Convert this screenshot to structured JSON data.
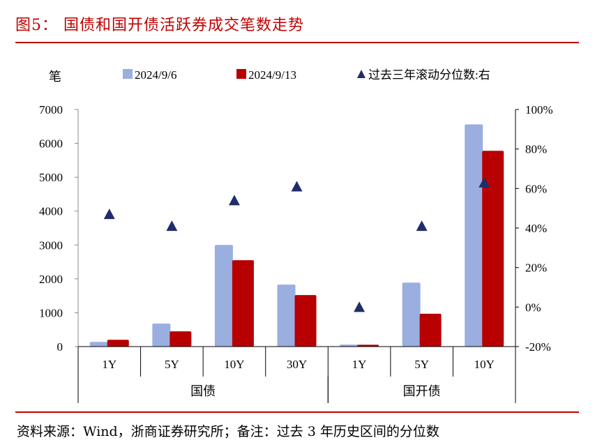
{
  "title": "图5：  国债和国开债活跃券成交笔数走势",
  "source": "资料来源：Wind，浙商证券研究所；备注：过去 3 年历史区间的分位数",
  "chart_data": {
    "type": "bar",
    "ylabel": "笔",
    "ylim": [
      0,
      7000
    ],
    "yticks": [
      0,
      1000,
      2000,
      3000,
      4000,
      5000,
      6000,
      7000
    ],
    "y2lim": [
      -20,
      100
    ],
    "y2ticks": [
      "-20%",
      "0%",
      "20%",
      "40%",
      "60%",
      "80%",
      "100%"
    ],
    "categories": [
      "1Y",
      "5Y",
      "10Y",
      "30Y",
      "1Y",
      "5Y",
      "10Y"
    ],
    "groups": [
      {
        "label": "国债",
        "count": 4
      },
      {
        "label": "国开债",
        "count": 3
      }
    ],
    "series": [
      {
        "name": "2024/9/6",
        "type": "bar",
        "color": "#9aaee0",
        "values": [
          140,
          680,
          3000,
          1830,
          60,
          1890,
          6560
        ]
      },
      {
        "name": "2024/9/13",
        "type": "bar",
        "color": "#b80000",
        "values": [
          200,
          450,
          2550,
          1520,
          55,
          970,
          5780
        ]
      },
      {
        "name": "过去三年滚动分位数:右",
        "type": "scatter",
        "marker": "triangle",
        "color": "#1f2d6b",
        "axis": "right",
        "values": [
          47,
          41,
          54,
          61,
          0,
          41,
          63
        ]
      }
    ],
    "legend": "top",
    "grid": false
  }
}
